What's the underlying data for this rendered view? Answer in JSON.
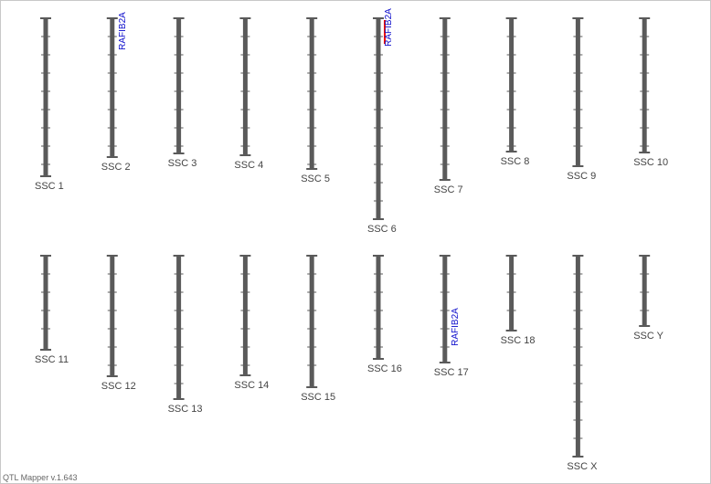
{
  "chromosomes": [
    {
      "label": "SSC 1",
      "length": 173
    },
    {
      "label": "SSC 2",
      "length": 152,
      "markers": [
        {
          "label": "RAFIB2A",
          "position": 14
        }
      ]
    },
    {
      "label": "SSC 3",
      "length": 148
    },
    {
      "label": "SSC 4",
      "length": 150
    },
    {
      "label": "SSC 5",
      "length": 165
    },
    {
      "label": "SSC 6",
      "length": 220,
      "markers": [
        {
          "label": "RAFIB2A",
          "position": 10,
          "span": [
            2,
            28
          ],
          "color": "#ee0000"
        }
      ]
    },
    {
      "label": "SSC 7",
      "length": 177
    },
    {
      "label": "SSC 8",
      "length": 146
    },
    {
      "label": "SSC 9",
      "length": 162
    },
    {
      "label": "SSC 10",
      "length": 147
    },
    {
      "label": "SSC 11",
      "length": 103
    },
    {
      "label": "SSC 12",
      "length": 132
    },
    {
      "label": "SSC 13",
      "length": 157
    },
    {
      "label": "SSC 14",
      "length": 131
    },
    {
      "label": "SSC 15",
      "length": 144
    },
    {
      "label": "SSC 16",
      "length": 113
    },
    {
      "label": "SSC 17",
      "length": 117,
      "markers": [
        {
          "label": "RAFIB2A",
          "position": 78
        }
      ]
    },
    {
      "label": "SSC 18",
      "length": 82
    },
    {
      "label": "SSC X",
      "length": 220
    },
    {
      "label": "SSC Y",
      "length": 77
    }
  ],
  "footer": "QTL Mapper v.1.643"
}
